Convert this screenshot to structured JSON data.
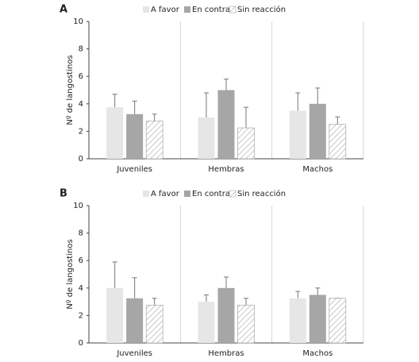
{
  "chart_data": [
    {
      "type": "bar",
      "panel_label": "A",
      "ylabel": "Nº de langostinos",
      "categories": [
        "Juveniles",
        "Hembras",
        "Machos"
      ],
      "series": [
        {
          "name": "A favor",
          "color": "#e6e6e6",
          "values": [
            3.75,
            3.0,
            3.5
          ],
          "errors": [
            0.95,
            1.8,
            1.3
          ]
        },
        {
          "name": "En contra",
          "color": "#a6a6a6",
          "values": [
            3.25,
            5.0,
            4.0
          ],
          "errors": [
            0.95,
            0.8,
            1.15
          ]
        },
        {
          "name": "Sin reacción",
          "color": "#c8c8c8",
          "pattern": "hatch",
          "values": [
            2.75,
            2.25,
            2.5
          ],
          "errors": [
            0.5,
            1.5,
            0.55
          ]
        }
      ],
      "ylim": [
        0,
        10
      ],
      "yticks": [
        0,
        2,
        4,
        6,
        8,
        10
      ],
      "category_separators": true
    },
    {
      "type": "bar",
      "panel_label": "B",
      "ylabel": "Nº de langostinos",
      "categories": [
        "Juveniles",
        "Hembras",
        "Machos"
      ],
      "series": [
        {
          "name": "A favor",
          "color": "#e6e6e6",
          "values": [
            4.0,
            3.0,
            3.25
          ],
          "errors": [
            1.9,
            0.5,
            0.5
          ]
        },
        {
          "name": "En contra",
          "color": "#a6a6a6",
          "values": [
            3.25,
            4.0,
            3.5
          ],
          "errors": [
            1.5,
            0.8,
            0.5
          ]
        },
        {
          "name": "Sin reacción",
          "color": "#c8c8c8",
          "pattern": "hatch",
          "values": [
            2.75,
            2.75,
            3.25
          ],
          "errors": [
            0.5,
            0.5,
            0
          ]
        }
      ],
      "ylim": [
        0,
        10
      ],
      "yticks": [
        0,
        2,
        4,
        6,
        8,
        10
      ],
      "category_separators": true
    }
  ]
}
